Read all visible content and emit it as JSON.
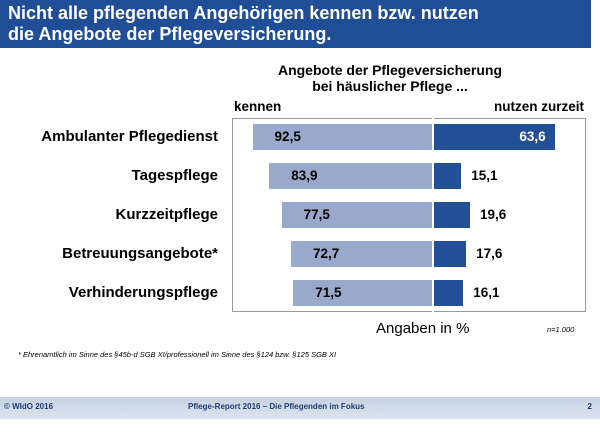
{
  "header": {
    "line1": "Nicht alle pflegenden Angehörigen kennen bzw. nutzen",
    "line2": "die Angebote der Pflegeversicherung."
  },
  "chart_data": {
    "type": "bar",
    "title_line1": "Angebote der Pflegeversicherung",
    "title_line2": "bei häuslicher Pflege ...",
    "categories": [
      "Ambulanter Pflegedienst",
      "Tagespflege",
      "Kurzzeitpflege",
      "Betreuungsangebote*",
      "Verhinderungspflege"
    ],
    "series": [
      {
        "name": "kennen",
        "values": [
          92.5,
          83.9,
          77.5,
          72.7,
          71.5
        ],
        "labels": [
          "92,5",
          "83,9",
          "77,5",
          "72,7",
          "71,5"
        ],
        "color": "#98a9cb"
      },
      {
        "name": "nutzen zurzeit",
        "values": [
          63.6,
          15.1,
          19.6,
          17.6,
          16.1
        ],
        "labels": [
          "63,6",
          "15,1",
          "19,6",
          "17,6",
          "16,1"
        ],
        "color": "#234f97"
      }
    ],
    "unit_label": "Angaben in %",
    "n_label": "n=1.000"
  },
  "footnote": "* Ehrenamtlich im Sinne des §45b-d SGB XI/professionell im Sinne des §124 bzw. §125 SGB XI",
  "footer": {
    "left": "© WIdO 2016",
    "center": "Pflege-Report 2016 – Die Pflegenden im Fokus",
    "page": "2"
  }
}
